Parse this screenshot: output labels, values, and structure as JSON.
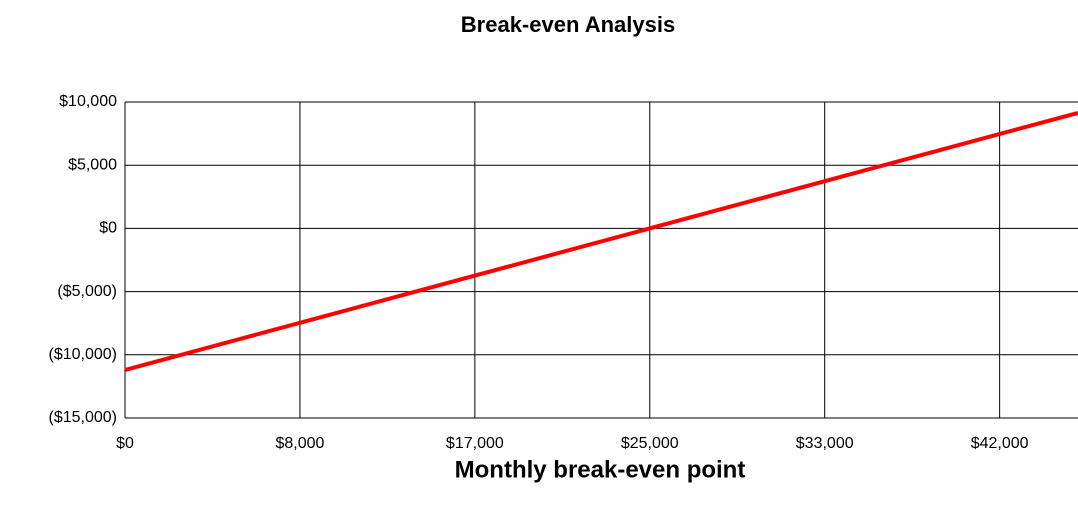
{
  "chart_data": {
    "type": "line",
    "title": "Break-even Analysis",
    "x_label": "Monthly break-even point",
    "x": [
      0,
      45400
    ],
    "series": [
      {
        "color": "#ff0000",
        "values": [
          -11200,
          9140
        ]
      }
    ],
    "xlim": [
      0,
      45400
    ],
    "xticks": [
      {
        "value": 0,
        "label": "$0"
      },
      {
        "value": 8333.33,
        "label": "$8,000"
      },
      {
        "value": 16666.67,
        "label": "$17,000"
      },
      {
        "value": 25000,
        "label": "$25,000"
      },
      {
        "value": 33333.33,
        "label": "$33,000"
      },
      {
        "value": 41666.67,
        "label": "$42,000"
      }
    ],
    "ylim": [
      -15000,
      10000
    ],
    "yticks": [
      {
        "value": 10000,
        "label": "$10,000"
      },
      {
        "value": 5000,
        "label": "$5,000"
      },
      {
        "value": 0,
        "label": "$0"
      },
      {
        "value": -5000,
        "label": "($5,000)"
      },
      {
        "value": -10000,
        "label": "($10,000)"
      },
      {
        "value": -15000,
        "label": "($15,000)"
      }
    ],
    "grid": true,
    "negative_tick_color": "#ff0000"
  }
}
